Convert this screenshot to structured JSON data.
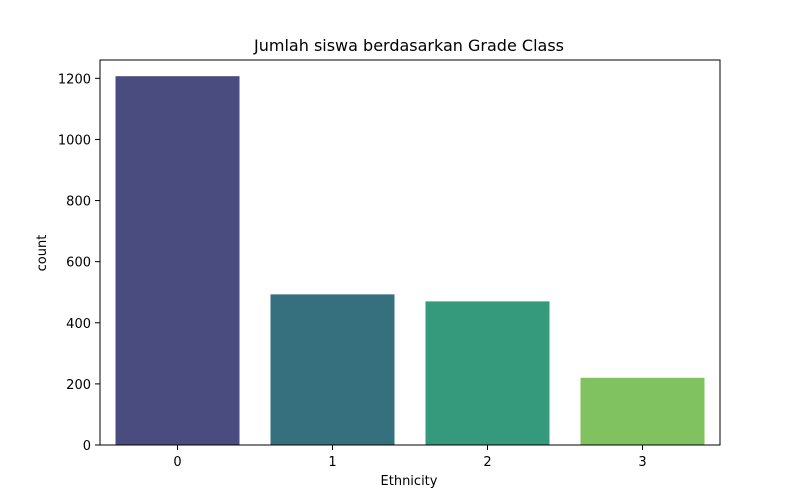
{
  "chart_data": {
    "type": "bar",
    "title": "Jumlah siswa berdasarkan Grade Class",
    "xlabel": "Ethnicity",
    "ylabel": "count",
    "categories": [
      "0",
      "1",
      "2",
      "3"
    ],
    "values": [
      1207,
      493,
      470,
      220
    ],
    "colors": [
      "#4a4c7f",
      "#36707f",
      "#35997b",
      "#80c25f"
    ],
    "ylim": [
      0,
      1260
    ],
    "yticks": [
      0,
      200,
      400,
      600,
      800,
      1000,
      1200
    ],
    "grid": false,
    "legend": "none"
  }
}
